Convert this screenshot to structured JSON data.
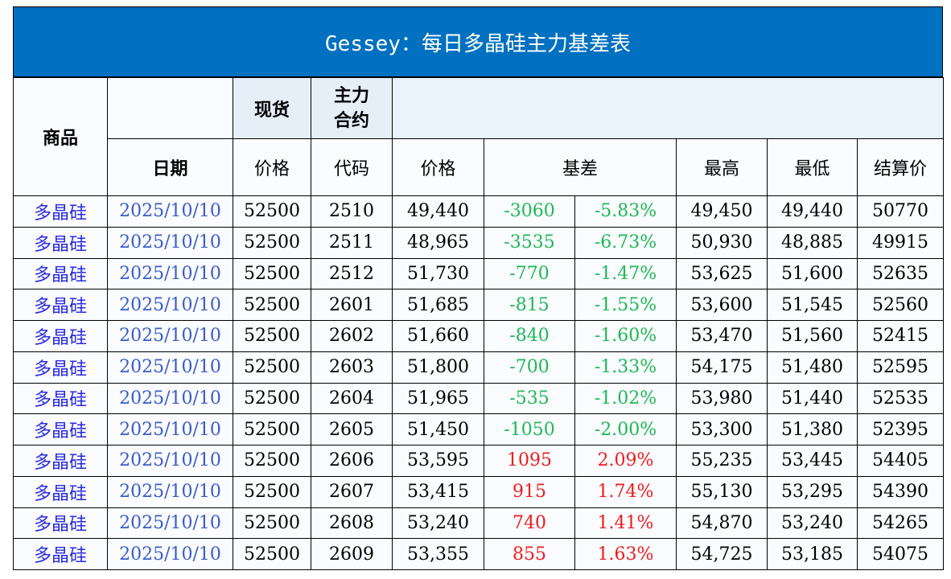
{
  "title": "Gessey：每日多晶硅主力基差表",
  "headers": {
    "product": "商品",
    "spot": "现货",
    "main_contract": "主力合约",
    "date": "日期",
    "spot_price": "价格",
    "code": "代码",
    "price": "价格",
    "basis": "基差",
    "high": "最高",
    "low": "最低",
    "settle": "结算价"
  },
  "rows": [
    {
      "product": "多晶硅",
      "date": "2025/10/10",
      "spot": "52500",
      "code": "2510",
      "price": "49,440",
      "basis": "-3060",
      "pct": "-5.83%",
      "high": "49,450",
      "low": "49,440",
      "settle": "50770",
      "dir": "neg"
    },
    {
      "product": "多晶硅",
      "date": "2025/10/10",
      "spot": "52500",
      "code": "2511",
      "price": "48,965",
      "basis": "-3535",
      "pct": "-6.73%",
      "high": "50,930",
      "low": "48,885",
      "settle": "49915",
      "dir": "neg"
    },
    {
      "product": "多晶硅",
      "date": "2025/10/10",
      "spot": "52500",
      "code": "2512",
      "price": "51,730",
      "basis": "-770",
      "pct": "-1.47%",
      "high": "53,625",
      "low": "51,600",
      "settle": "52635",
      "dir": "neg"
    },
    {
      "product": "多晶硅",
      "date": "2025/10/10",
      "spot": "52500",
      "code": "2601",
      "price": "51,685",
      "basis": "-815",
      "pct": "-1.55%",
      "high": "53,600",
      "low": "51,545",
      "settle": "52560",
      "dir": "neg"
    },
    {
      "product": "多晶硅",
      "date": "2025/10/10",
      "spot": "52500",
      "code": "2602",
      "price": "51,660",
      "basis": "-840",
      "pct": "-1.60%",
      "high": "53,470",
      "low": "51,560",
      "settle": "52415",
      "dir": "neg"
    },
    {
      "product": "多晶硅",
      "date": "2025/10/10",
      "spot": "52500",
      "code": "2603",
      "price": "51,800",
      "basis": "-700",
      "pct": "-1.33%",
      "high": "54,175",
      "low": "51,480",
      "settle": "52595",
      "dir": "neg"
    },
    {
      "product": "多晶硅",
      "date": "2025/10/10",
      "spot": "52500",
      "code": "2604",
      "price": "51,965",
      "basis": "-535",
      "pct": "-1.02%",
      "high": "53,980",
      "low": "51,440",
      "settle": "52535",
      "dir": "neg"
    },
    {
      "product": "多晶硅",
      "date": "2025/10/10",
      "spot": "52500",
      "code": "2605",
      "price": "51,450",
      "basis": "-1050",
      "pct": "-2.00%",
      "high": "53,300",
      "low": "51,380",
      "settle": "52395",
      "dir": "neg"
    },
    {
      "product": "多晶硅",
      "date": "2025/10/10",
      "spot": "52500",
      "code": "2606",
      "price": "53,595",
      "basis": "1095",
      "pct": "2.09%",
      "high": "55,235",
      "low": "53,445",
      "settle": "54405",
      "dir": "pos"
    },
    {
      "product": "多晶硅",
      "date": "2025/10/10",
      "spot": "52500",
      "code": "2607",
      "price": "53,415",
      "basis": "915",
      "pct": "1.74%",
      "high": "55,130",
      "low": "53,295",
      "settle": "54390",
      "dir": "pos"
    },
    {
      "product": "多晶硅",
      "date": "2025/10/10",
      "spot": "52500",
      "code": "2608",
      "price": "53,240",
      "basis": "740",
      "pct": "1.41%",
      "high": "54,870",
      "low": "53,240",
      "settle": "54265",
      "dir": "pos"
    },
    {
      "product": "多晶硅",
      "date": "2025/10/10",
      "spot": "52500",
      "code": "2609",
      "price": "53,355",
      "basis": "855",
      "pct": "1.63%",
      "high": "54,725",
      "low": "53,185",
      "settle": "54075",
      "dir": "pos"
    }
  ]
}
